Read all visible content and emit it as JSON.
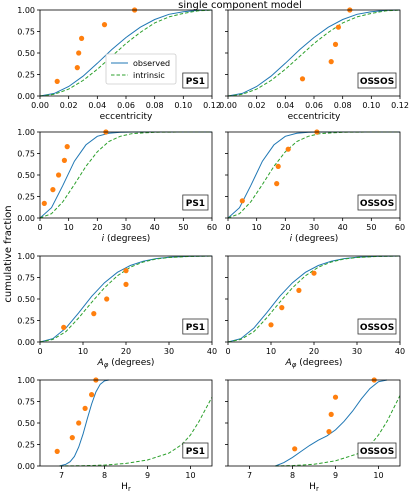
{
  "figure": {
    "title": "single component model",
    "ylabel": "cumulative fraction"
  },
  "colors": {
    "observed": "#1f77b4",
    "intrinsic": "#2ca02c",
    "points": "#ff7f0e",
    "axis": "#000000"
  },
  "chart_data": [
    {
      "type": "line",
      "row": 0,
      "col": 0,
      "label": "PS1",
      "xlabel": "eccentricity",
      "xlim": [
        0,
        0.12
      ],
      "ylim": [
        0,
        1.0
      ],
      "xticks": [
        "0.00",
        "0.02",
        "0.04",
        "0.06",
        "0.08",
        "0.10",
        "0.12"
      ],
      "yticks": [
        "0.00",
        "0.25",
        "0.50",
        "0.75",
        "1.00"
      ],
      "legend": [
        "observed",
        "intrinsic"
      ],
      "legend_loc": "lower-right",
      "series": [
        {
          "name": "observed",
          "style": "solid",
          "x": [
            0,
            0.01,
            0.02,
            0.03,
            0.04,
            0.05,
            0.06,
            0.07,
            0.08,
            0.09,
            0.1,
            0.11,
            0.12
          ],
          "y": [
            0,
            0.03,
            0.11,
            0.23,
            0.38,
            0.54,
            0.68,
            0.8,
            0.89,
            0.95,
            0.98,
            0.995,
            1.0
          ]
        },
        {
          "name": "intrinsic",
          "style": "dashed",
          "x": [
            0,
            0.01,
            0.02,
            0.03,
            0.04,
            0.05,
            0.06,
            0.07,
            0.08,
            0.09,
            0.1,
            0.11,
            0.12
          ],
          "y": [
            0,
            0.02,
            0.08,
            0.18,
            0.31,
            0.46,
            0.61,
            0.74,
            0.85,
            0.92,
            0.96,
            0.99,
            1.0
          ]
        }
      ],
      "points": [
        [
          0.012,
          0.17
        ],
        [
          0.026,
          0.33
        ],
        [
          0.027,
          0.5
        ],
        [
          0.029,
          0.67
        ],
        [
          0.045,
          0.83
        ],
        [
          0.066,
          1.0
        ]
      ]
    },
    {
      "type": "line",
      "row": 0,
      "col": 1,
      "label": "OSSOS",
      "xlabel": "eccentricity",
      "xlim": [
        0,
        0.12
      ],
      "ylim": [
        0,
        1.0
      ],
      "xticks": [
        "0.00",
        "0.02",
        "0.04",
        "0.06",
        "0.08",
        "0.10",
        "0.12"
      ],
      "yticks": [],
      "series": [
        {
          "name": "observed",
          "style": "solid",
          "x": [
            0,
            0.01,
            0.02,
            0.03,
            0.04,
            0.05,
            0.06,
            0.07,
            0.08,
            0.09,
            0.1,
            0.11,
            0.12
          ],
          "y": [
            0,
            0.03,
            0.11,
            0.23,
            0.38,
            0.54,
            0.68,
            0.8,
            0.89,
            0.95,
            0.98,
            0.995,
            1.0
          ]
        },
        {
          "name": "intrinsic",
          "style": "dashed",
          "x": [
            0,
            0.01,
            0.02,
            0.03,
            0.04,
            0.05,
            0.06,
            0.07,
            0.08,
            0.09,
            0.1,
            0.11,
            0.12
          ],
          "y": [
            0,
            0.02,
            0.08,
            0.18,
            0.31,
            0.46,
            0.61,
            0.74,
            0.85,
            0.92,
            0.96,
            0.99,
            1.0
          ]
        }
      ],
      "points": [
        [
          0.052,
          0.2
        ],
        [
          0.072,
          0.4
        ],
        [
          0.075,
          0.6
        ],
        [
          0.077,
          0.8
        ],
        [
          0.085,
          1.0
        ]
      ]
    },
    {
      "type": "line",
      "row": 1,
      "col": 0,
      "label": "PS1",
      "xlabel": "i (degrees)",
      "xlim": [
        0,
        60
      ],
      "ylim": [
        0,
        1.0
      ],
      "xticks": [
        "0",
        "10",
        "20",
        "30",
        "40",
        "50",
        "60"
      ],
      "yticks": [
        "0.00",
        "0.25",
        "0.50",
        "0.75",
        "1.00"
      ],
      "series": [
        {
          "name": "observed",
          "style": "solid",
          "x": [
            0,
            4,
            8,
            12,
            16,
            20,
            24,
            28,
            32,
            40,
            50,
            60
          ],
          "y": [
            0,
            0.12,
            0.38,
            0.66,
            0.85,
            0.95,
            0.985,
            0.996,
            1.0,
            1.0,
            1.0,
            1.0
          ]
        },
        {
          "name": "intrinsic",
          "style": "dashed",
          "x": [
            0,
            4,
            8,
            12,
            16,
            20,
            24,
            28,
            32,
            40,
            50,
            60
          ],
          "y": [
            0,
            0.05,
            0.19,
            0.39,
            0.6,
            0.77,
            0.89,
            0.95,
            0.98,
            0.998,
            1.0,
            1.0
          ]
        }
      ],
      "points": [
        [
          1.5,
          0.17
        ],
        [
          4.5,
          0.33
        ],
        [
          6.5,
          0.5
        ],
        [
          8.5,
          0.67
        ],
        [
          9.5,
          0.83
        ],
        [
          23,
          1.0
        ]
      ]
    },
    {
      "type": "line",
      "row": 1,
      "col": 1,
      "label": "OSSOS",
      "xlabel": "i (degrees)",
      "xlim": [
        0,
        60
      ],
      "ylim": [
        0,
        1.0
      ],
      "xticks": [
        "0",
        "10",
        "20",
        "30",
        "40",
        "50",
        "60"
      ],
      "yticks": [],
      "series": [
        {
          "name": "observed",
          "style": "solid",
          "x": [
            0,
            4,
            8,
            12,
            16,
            20,
            24,
            28,
            32,
            40,
            50,
            60
          ],
          "y": [
            0,
            0.12,
            0.38,
            0.66,
            0.85,
            0.95,
            0.985,
            0.996,
            1.0,
            1.0,
            1.0,
            1.0
          ]
        },
        {
          "name": "intrinsic",
          "style": "dashed",
          "x": [
            0,
            4,
            8,
            12,
            16,
            20,
            24,
            28,
            32,
            40,
            50,
            60
          ],
          "y": [
            0,
            0.05,
            0.19,
            0.39,
            0.6,
            0.77,
            0.89,
            0.95,
            0.98,
            0.998,
            1.0,
            1.0
          ]
        }
      ],
      "points": [
        [
          5,
          0.2
        ],
        [
          17,
          0.4
        ],
        [
          17.5,
          0.6
        ],
        [
          21,
          0.8
        ],
        [
          31,
          1.0
        ]
      ]
    },
    {
      "type": "line",
      "row": 2,
      "col": 0,
      "label": "PS1",
      "xlabel": "A_phi (degrees)",
      "xlim": [
        0,
        40
      ],
      "ylim": [
        0,
        1.0
      ],
      "xticks": [
        "0",
        "10",
        "20",
        "30",
        "40"
      ],
      "yticks": [
        "0.00",
        "0.25",
        "0.50",
        "0.75",
        "1.00"
      ],
      "series": [
        {
          "name": "observed",
          "style": "solid",
          "x": [
            0,
            3,
            6,
            9,
            12,
            15,
            18,
            21,
            24,
            27,
            30,
            35,
            40
          ],
          "y": [
            0,
            0.04,
            0.16,
            0.34,
            0.53,
            0.69,
            0.81,
            0.89,
            0.94,
            0.97,
            0.985,
            0.996,
            1.0
          ]
        },
        {
          "name": "intrinsic",
          "style": "dashed",
          "x": [
            0,
            3,
            6,
            9,
            12,
            15,
            18,
            21,
            24,
            27,
            30,
            35,
            40
          ],
          "y": [
            0,
            0.03,
            0.12,
            0.28,
            0.46,
            0.63,
            0.77,
            0.87,
            0.93,
            0.965,
            0.983,
            0.995,
            1.0
          ]
        }
      ],
      "points": [
        [
          5.5,
          0.17
        ],
        [
          12.5,
          0.33
        ],
        [
          15.5,
          0.5
        ],
        [
          20,
          0.67
        ],
        [
          20,
          0.83
        ]
      ]
    },
    {
      "type": "line",
      "row": 2,
      "col": 1,
      "label": "OSSOS",
      "xlabel": "A_phi (degrees)",
      "xlim": [
        0,
        40
      ],
      "ylim": [
        0,
        1.0
      ],
      "xticks": [
        "0",
        "10",
        "20",
        "30",
        "40"
      ],
      "yticks": [],
      "series": [
        {
          "name": "observed",
          "style": "solid",
          "x": [
            0,
            3,
            6,
            9,
            12,
            15,
            18,
            21,
            24,
            27,
            30,
            35,
            40
          ],
          "y": [
            0,
            0.04,
            0.16,
            0.34,
            0.53,
            0.69,
            0.81,
            0.89,
            0.94,
            0.97,
            0.985,
            0.996,
            1.0
          ]
        },
        {
          "name": "intrinsic",
          "style": "dashed",
          "x": [
            0,
            3,
            6,
            9,
            12,
            15,
            18,
            21,
            24,
            27,
            30,
            35,
            40
          ],
          "y": [
            0,
            0.03,
            0.12,
            0.28,
            0.46,
            0.63,
            0.77,
            0.87,
            0.93,
            0.965,
            0.983,
            0.995,
            1.0
          ]
        }
      ],
      "points": [
        [
          10,
          0.2
        ],
        [
          12.5,
          0.4
        ],
        [
          16.5,
          0.6
        ],
        [
          20,
          0.8
        ]
      ]
    },
    {
      "type": "line",
      "row": 3,
      "col": 0,
      "label": "PS1",
      "xlabel": "H_r",
      "xlim": [
        6.5,
        10.5
      ],
      "ylim": [
        0,
        1.0
      ],
      "xticks": [
        "7",
        "8",
        "9",
        "10"
      ],
      "xtick_values": [
        7,
        8,
        9,
        10
      ],
      "yticks": [
        "0.00",
        "0.25",
        "0.50",
        "0.75",
        "1.00"
      ],
      "series": [
        {
          "name": "observed",
          "style": "solid",
          "x": [
            6.95,
            7.1,
            7.2,
            7.3,
            7.4,
            7.5,
            7.6,
            7.7,
            7.8,
            7.9,
            8.0,
            8.1
          ],
          "y": [
            0,
            0.02,
            0.05,
            0.11,
            0.22,
            0.37,
            0.55,
            0.72,
            0.86,
            0.95,
            0.99,
            1.0
          ]
        },
        {
          "name": "intrinsic",
          "style": "dashed",
          "x": [
            6.95,
            7.5,
            8.0,
            8.5,
            9.0,
            9.5,
            9.8,
            10.0,
            10.2,
            10.35,
            10.5
          ],
          "y": [
            0,
            0.003,
            0.01,
            0.03,
            0.07,
            0.15,
            0.25,
            0.36,
            0.52,
            0.66,
            0.8
          ]
        }
      ],
      "points": [
        [
          6.9,
          0.17
        ],
        [
          7.25,
          0.33
        ],
        [
          7.4,
          0.5
        ],
        [
          7.55,
          0.67
        ],
        [
          7.7,
          0.83
        ],
        [
          7.8,
          1.0
        ]
      ]
    },
    {
      "type": "line",
      "row": 3,
      "col": 1,
      "label": "OSSOS",
      "xlabel": "H_r",
      "xlim": [
        6.5,
        10.5
      ],
      "ylim": [
        0,
        1.0
      ],
      "xticks": [
        "7",
        "8",
        "9",
        "10"
      ],
      "xtick_values": [
        7,
        8,
        9,
        10
      ],
      "yticks": [],
      "series": [
        {
          "name": "observed",
          "style": "solid",
          "x": [
            7.6,
            7.8,
            8.0,
            8.2,
            8.4,
            8.6,
            8.8,
            9.0,
            9.2,
            9.4,
            9.6,
            9.8,
            10.0,
            10.2
          ],
          "y": [
            0,
            0.04,
            0.1,
            0.17,
            0.24,
            0.3,
            0.35,
            0.42,
            0.52,
            0.64,
            0.78,
            0.9,
            0.98,
            1.0
          ]
        },
        {
          "name": "intrinsic",
          "style": "dashed",
          "x": [
            7.6,
            8.0,
            8.5,
            9.0,
            9.5,
            9.8,
            10.0,
            10.2,
            10.35,
            10.5
          ],
          "y": [
            0,
            0.005,
            0.02,
            0.06,
            0.14,
            0.24,
            0.36,
            0.52,
            0.67,
            0.82
          ]
        }
      ],
      "points": [
        [
          8.05,
          0.2
        ],
        [
          8.85,
          0.4
        ],
        [
          8.9,
          0.6
        ],
        [
          9.0,
          0.8
        ],
        [
          9.9,
          1.0
        ]
      ]
    }
  ]
}
